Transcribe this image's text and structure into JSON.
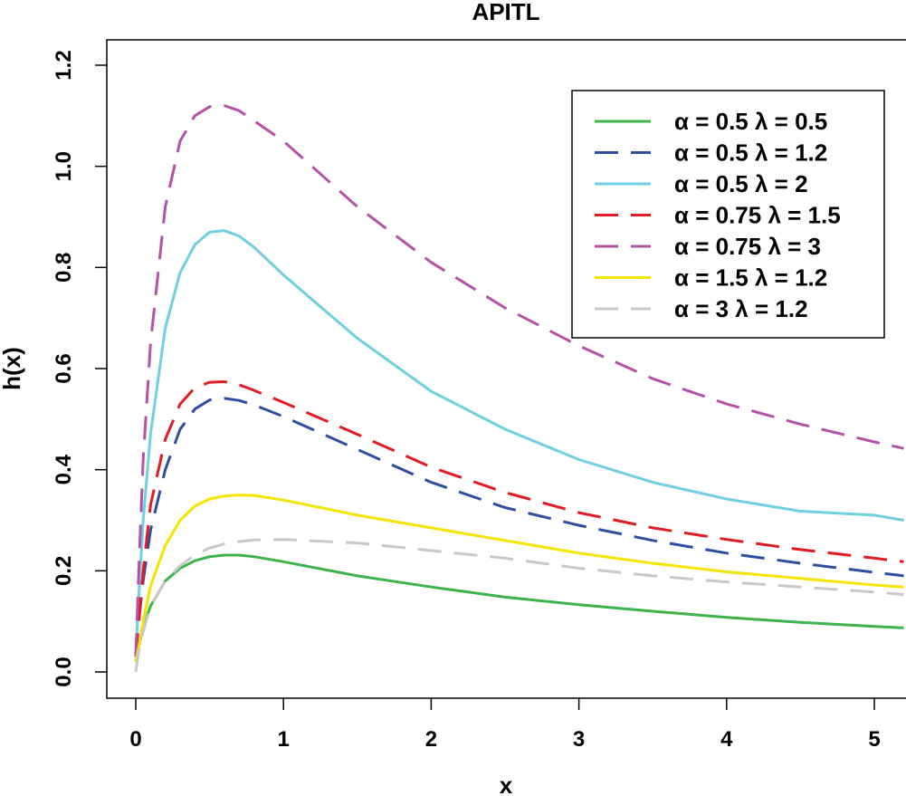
{
  "chart_data": {
    "type": "line",
    "title": "APITL",
    "xlabel": "x",
    "ylabel": "h(x)",
    "xlim": [
      -0.2,
      5.2
    ],
    "ylim": [
      -0.05,
      1.25
    ],
    "xticks": [
      0,
      1,
      2,
      3,
      4,
      5
    ],
    "yticks": [
      0.0,
      0.2,
      0.4,
      0.6,
      0.8,
      1.0,
      1.2
    ],
    "xtick_labels": [
      "0",
      "1",
      "2",
      "3",
      "4",
      "5"
    ],
    "ytick_labels": [
      "0.0",
      "0.2",
      "0.4",
      "0.6",
      "0.8",
      "1.0",
      "1.2"
    ],
    "legend_position": "top-right",
    "series": [
      {
        "name": "α = 0.5  λ = 0.5",
        "color": "#3cb44b",
        "dash": "solid",
        "points": [
          [
            0,
            0.02
          ],
          [
            0.02,
            0.05
          ],
          [
            0.05,
            0.09
          ],
          [
            0.1,
            0.13
          ],
          [
            0.2,
            0.18
          ],
          [
            0.3,
            0.205
          ],
          [
            0.4,
            0.22
          ],
          [
            0.5,
            0.228
          ],
          [
            0.6,
            0.231
          ],
          [
            0.7,
            0.231
          ],
          [
            0.8,
            0.228
          ],
          [
            1.0,
            0.218
          ],
          [
            1.5,
            0.19
          ],
          [
            2.0,
            0.168
          ],
          [
            2.5,
            0.148
          ],
          [
            3.0,
            0.133
          ],
          [
            3.5,
            0.12
          ],
          [
            4.0,
            0.108
          ],
          [
            4.5,
            0.098
          ],
          [
            5.0,
            0.09
          ],
          [
            5.2,
            0.087
          ]
        ]
      },
      {
        "name": "α = 0.5  λ = 1.2",
        "color": "#2e4ea0",
        "dash": "dashed",
        "points": [
          [
            0,
            0.03
          ],
          [
            0.02,
            0.1
          ],
          [
            0.05,
            0.18
          ],
          [
            0.1,
            0.28
          ],
          [
            0.2,
            0.4
          ],
          [
            0.3,
            0.48
          ],
          [
            0.4,
            0.52
          ],
          [
            0.5,
            0.538
          ],
          [
            0.6,
            0.541
          ],
          [
            0.7,
            0.537
          ],
          [
            0.8,
            0.528
          ],
          [
            1.0,
            0.505
          ],
          [
            1.5,
            0.44
          ],
          [
            2.0,
            0.375
          ],
          [
            2.5,
            0.325
          ],
          [
            3.0,
            0.29
          ],
          [
            3.5,
            0.26
          ],
          [
            4.0,
            0.235
          ],
          [
            4.5,
            0.215
          ],
          [
            5.0,
            0.197
          ],
          [
            5.2,
            0.19
          ]
        ]
      },
      {
        "name": "α = 0.5  λ = 2",
        "color": "#70cfe0",
        "dash": "solid",
        "points": [
          [
            0,
            0.03
          ],
          [
            0.02,
            0.15
          ],
          [
            0.05,
            0.3
          ],
          [
            0.1,
            0.47
          ],
          [
            0.2,
            0.68
          ],
          [
            0.3,
            0.79
          ],
          [
            0.4,
            0.845
          ],
          [
            0.5,
            0.87
          ],
          [
            0.6,
            0.873
          ],
          [
            0.7,
            0.862
          ],
          [
            0.8,
            0.84
          ],
          [
            1.0,
            0.785
          ],
          [
            1.5,
            0.66
          ],
          [
            2.0,
            0.555
          ],
          [
            2.5,
            0.48
          ],
          [
            3.0,
            0.42
          ],
          [
            3.5,
            0.375
          ],
          [
            4.0,
            0.342
          ],
          [
            4.5,
            0.318
          ],
          [
            5.0,
            0.31
          ],
          [
            5.2,
            0.3
          ]
        ]
      },
      {
        "name": "α = 0.75  λ = 1.5",
        "color": "#e21b22",
        "dash": "dashed",
        "points": [
          [
            0,
            0.03
          ],
          [
            0.02,
            0.1
          ],
          [
            0.05,
            0.2
          ],
          [
            0.1,
            0.33
          ],
          [
            0.2,
            0.46
          ],
          [
            0.3,
            0.53
          ],
          [
            0.4,
            0.562
          ],
          [
            0.5,
            0.573
          ],
          [
            0.6,
            0.574
          ],
          [
            0.7,
            0.568
          ],
          [
            0.8,
            0.557
          ],
          [
            1.0,
            0.533
          ],
          [
            1.5,
            0.47
          ],
          [
            2.0,
            0.405
          ],
          [
            2.5,
            0.355
          ],
          [
            3.0,
            0.315
          ],
          [
            3.5,
            0.285
          ],
          [
            4.0,
            0.262
          ],
          [
            4.5,
            0.242
          ],
          [
            5.0,
            0.225
          ],
          [
            5.2,
            0.218
          ]
        ]
      },
      {
        "name": "α = 0.75  λ = 3",
        "color": "#b352a8",
        "dash": "dashed",
        "points": [
          [
            0,
            0.03
          ],
          [
            0.02,
            0.2
          ],
          [
            0.05,
            0.42
          ],
          [
            0.1,
            0.65
          ],
          [
            0.2,
            0.92
          ],
          [
            0.3,
            1.05
          ],
          [
            0.4,
            1.1
          ],
          [
            0.5,
            1.118
          ],
          [
            0.6,
            1.12
          ],
          [
            0.7,
            1.11
          ],
          [
            0.8,
            1.09
          ],
          [
            1.0,
            1.05
          ],
          [
            1.5,
            0.92
          ],
          [
            2.0,
            0.81
          ],
          [
            2.5,
            0.72
          ],
          [
            3.0,
            0.645
          ],
          [
            3.5,
            0.58
          ],
          [
            4.0,
            0.53
          ],
          [
            4.5,
            0.49
          ],
          [
            5.0,
            0.455
          ],
          [
            5.2,
            0.442
          ]
        ]
      },
      {
        "name": "α = 1.5  λ = 1.2",
        "color": "#f5e400",
        "dash": "solid",
        "points": [
          [
            0,
            0.02
          ],
          [
            0.02,
            0.05
          ],
          [
            0.05,
            0.1
          ],
          [
            0.1,
            0.17
          ],
          [
            0.2,
            0.25
          ],
          [
            0.3,
            0.3
          ],
          [
            0.4,
            0.328
          ],
          [
            0.5,
            0.342
          ],
          [
            0.6,
            0.348
          ],
          [
            0.7,
            0.35
          ],
          [
            0.8,
            0.349
          ],
          [
            1.0,
            0.34
          ],
          [
            1.5,
            0.31
          ],
          [
            2.0,
            0.285
          ],
          [
            2.5,
            0.26
          ],
          [
            3.0,
            0.235
          ],
          [
            3.5,
            0.215
          ],
          [
            4.0,
            0.198
          ],
          [
            4.5,
            0.185
          ],
          [
            5.0,
            0.172
          ],
          [
            5.2,
            0.168
          ]
        ]
      },
      {
        "name": "α = 3  λ = 1.2",
        "color": "#c8c8c8",
        "dash": "dashed",
        "points": [
          [
            0,
            0.0
          ],
          [
            0.02,
            0.04
          ],
          [
            0.05,
            0.08
          ],
          [
            0.1,
            0.13
          ],
          [
            0.2,
            0.18
          ],
          [
            0.3,
            0.21
          ],
          [
            0.4,
            0.232
          ],
          [
            0.5,
            0.245
          ],
          [
            0.6,
            0.253
          ],
          [
            0.7,
            0.258
          ],
          [
            0.8,
            0.261
          ],
          [
            1.0,
            0.262
          ],
          [
            1.5,
            0.255
          ],
          [
            2.0,
            0.24
          ],
          [
            2.5,
            0.225
          ],
          [
            3.0,
            0.205
          ],
          [
            3.5,
            0.19
          ],
          [
            4.0,
            0.178
          ],
          [
            4.5,
            0.168
          ],
          [
            5.0,
            0.158
          ],
          [
            5.2,
            0.153
          ]
        ]
      }
    ]
  }
}
